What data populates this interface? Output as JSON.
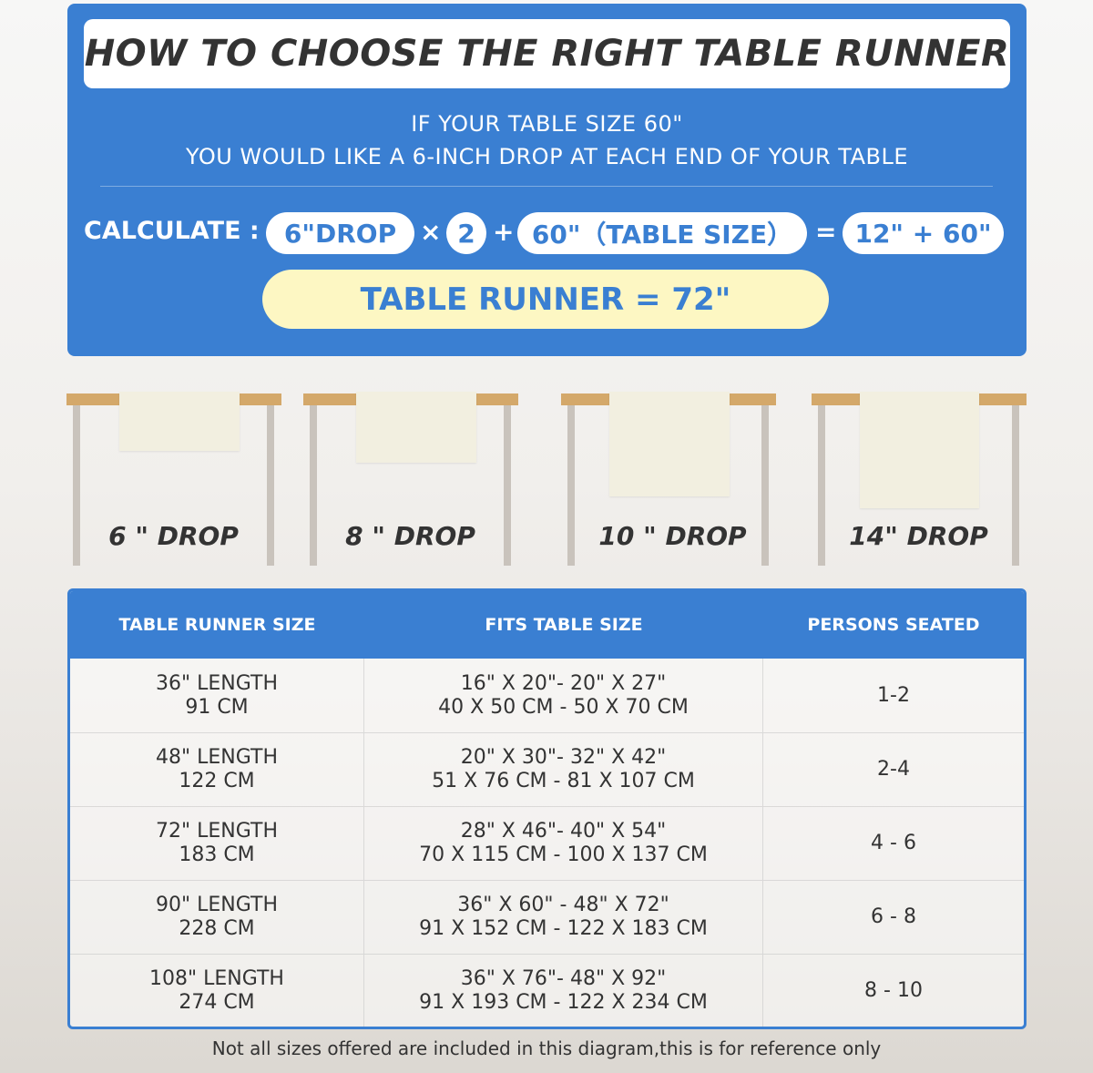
{
  "title": "HOW TO CHOOSE THE RIGHT TABLE RUNNER",
  "intro": [
    "IF YOUR TABLE SIZE 60\"",
    "YOU WOULD LIKE A 6-INCH DROP AT EACH END OF YOUR TABLE"
  ],
  "calc": {
    "label": "CALCULATE :",
    "drop": "6\"DROP",
    "times": "×",
    "multiplier": "2",
    "plus": "+",
    "table": "60\"（TABLE SIZE）",
    "equals": "=",
    "sum": "12\" + 60\"",
    "result": "TABLE RUNNER = 72\""
  },
  "drops": [
    {
      "label": "6 \" DROP",
      "inches": 6
    },
    {
      "label": "8 \" DROP",
      "inches": 8
    },
    {
      "label": "10 \" DROP",
      "inches": 10
    },
    {
      "label": "14\" DROP",
      "inches": 14
    }
  ],
  "colors": {
    "brand_blue": "#3a7fd2",
    "result_bg": "#fdf7c3",
    "tabletop": "#d4a86a",
    "runner": "#f2efe0"
  },
  "table": {
    "headers": [
      "TABLE RUNNER SIZE",
      "FITS TABLE SIZE",
      "PERSONS SEATED"
    ],
    "rows": [
      {
        "size": [
          "36\" LENGTH",
          "91 CM"
        ],
        "fits": [
          "16\" X 20\"- 20\" X 27\"",
          "40 X 50 CM - 50 X 70 CM"
        ],
        "persons": "1-2"
      },
      {
        "size": [
          "48\" LENGTH",
          "122 CM"
        ],
        "fits": [
          "20\" X 30\"- 32\" X 42\"",
          "51 X 76 CM - 81 X 107 CM"
        ],
        "persons": "2-4"
      },
      {
        "size": [
          "72\" LENGTH",
          "183 CM"
        ],
        "fits": [
          "28\" X 46\"- 40\" X 54\"",
          "70 X 115 CM - 100 X 137 CM"
        ],
        "persons": "4 - 6"
      },
      {
        "size": [
          "90\" LENGTH",
          "228 CM"
        ],
        "fits": [
          "36\" X 60\" - 48\" X 72\"",
          "91 X 152 CM - 122 X 183 CM"
        ],
        "persons": "6 - 8"
      },
      {
        "size": [
          "108\" LENGTH",
          "274 CM"
        ],
        "fits": [
          "36\" X 76\"- 48\" X 92\"",
          "91 X 193 CM - 122 X 234 CM"
        ],
        "persons": "8 - 10"
      }
    ]
  },
  "footer": "Not all sizes offered are included in this diagram,this is for reference only"
}
